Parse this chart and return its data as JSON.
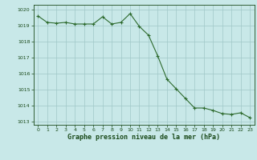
{
  "x": [
    0,
    1,
    2,
    3,
    4,
    5,
    6,
    7,
    8,
    9,
    10,
    11,
    12,
    13,
    14,
    15,
    16,
    17,
    18,
    19,
    20,
    21,
    22,
    23
  ],
  "y": [
    1019.6,
    1019.2,
    1019.15,
    1019.2,
    1019.1,
    1019.1,
    1019.1,
    1019.55,
    1019.1,
    1019.2,
    1019.75,
    1018.95,
    1018.4,
    1017.1,
    1015.65,
    1015.05,
    1014.45,
    1013.85,
    1013.85,
    1013.7,
    1013.5,
    1013.45,
    1013.55,
    1013.25
  ],
  "line_color": "#2d6a2d",
  "marker_color": "#2d6a2d",
  "bg_color": "#c8e8e8",
  "grid_color": "#a0c8c8",
  "text_color": "#1a4a1a",
  "xlabel": "Graphe pression niveau de la mer (hPa)",
  "ylim": [
    1012.8,
    1020.3
  ],
  "xlim": [
    -0.5,
    23.5
  ],
  "yticks": [
    1013,
    1014,
    1015,
    1016,
    1017,
    1018,
    1019,
    1020
  ],
  "xticks": [
    0,
    1,
    2,
    3,
    4,
    5,
    6,
    7,
    8,
    9,
    10,
    11,
    12,
    13,
    14,
    15,
    16,
    17,
    18,
    19,
    20,
    21,
    22,
    23
  ]
}
